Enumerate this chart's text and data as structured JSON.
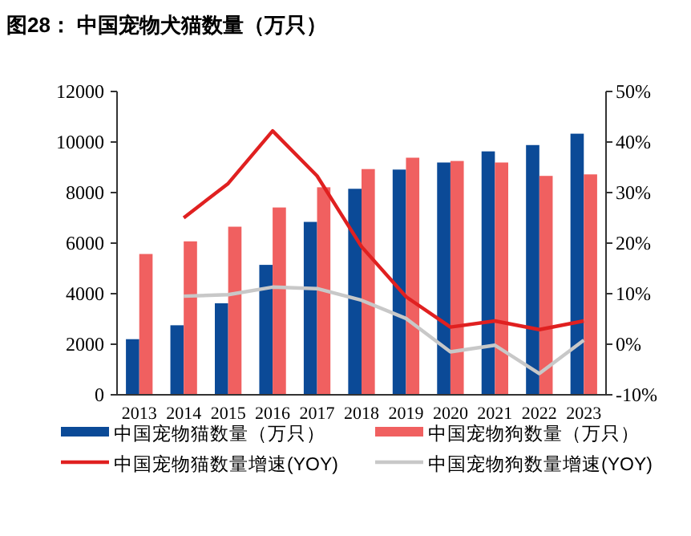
{
  "chart_data": {
    "type": "bar",
    "title": "图28：  中国宠物犬猫数量（万只）",
    "categories": [
      "2013",
      "2014",
      "2015",
      "2016",
      "2017",
      "2018",
      "2019",
      "2020",
      "2021",
      "2022",
      "2023"
    ],
    "series": [
      {
        "name": "中国宠物猫数量（万只）",
        "color": "#0b4a97",
        "values": [
          2200,
          2750,
          3620,
          5140,
          6840,
          8150,
          8910,
          9190,
          9630,
          9880,
          10330
        ]
      },
      {
        "name": "中国宠物狗数量（万只）",
        "color": "#f06060",
        "values": [
          5570,
          6070,
          6650,
          7410,
          8210,
          8930,
          9380,
          9250,
          9190,
          8660,
          8720
        ]
      },
      {
        "name": "中国宠物猫数量增速(YOY)",
        "type": "line",
        "axis": "y2",
        "color": "#e02020",
        "values": [
          null,
          25.0,
          31.8,
          42.2,
          33.3,
          19.3,
          9.4,
          3.4,
          4.6,
          2.9,
          4.6
        ]
      },
      {
        "name": "中国宠物狗数量增速(YOY)",
        "type": "line",
        "axis": "y2",
        "color": "#c8c8c8",
        "values": [
          null,
          9.5,
          9.8,
          11.3,
          11.0,
          8.7,
          5.1,
          -1.5,
          -0.2,
          -5.8,
          0.8
        ]
      }
    ],
    "ylim": [
      0,
      12000
    ],
    "yticks": [
      0,
      2000,
      4000,
      6000,
      8000,
      10000,
      12000
    ],
    "y2lim": [
      -10,
      50
    ],
    "y2ticks": [
      {
        "value": -10,
        "label": "-10%"
      },
      {
        "value": 0,
        "label": "0%"
      },
      {
        "value": 10,
        "label": "10%"
      },
      {
        "value": 20,
        "label": "20%"
      },
      {
        "value": 30,
        "label": "30%"
      },
      {
        "value": 40,
        "label": "40%"
      },
      {
        "value": 50,
        "label": "50%"
      }
    ],
    "grid": false,
    "legend": "bottom"
  }
}
